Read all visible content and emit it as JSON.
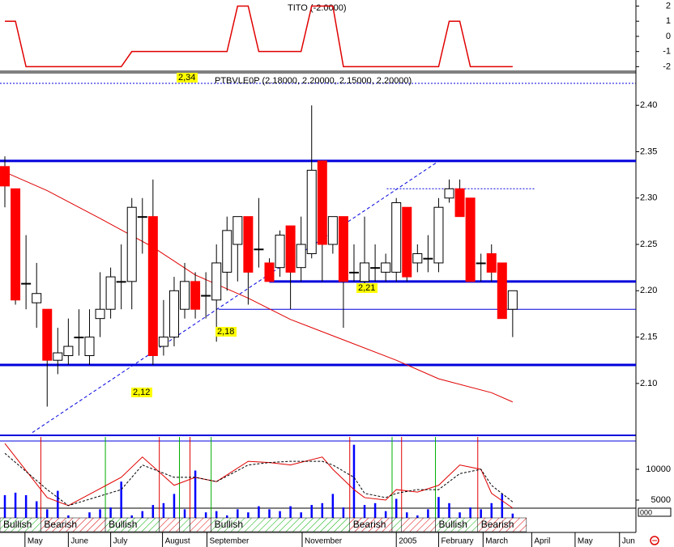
{
  "chart_data": [
    {
      "type": "line",
      "title": "TITO (-2.0000)",
      "color": "#e00000",
      "values": [
        1,
        1,
        -2,
        -2,
        -2,
        -2,
        -2,
        -2,
        -2,
        -2,
        -2,
        -2,
        -1,
        -1,
        -1,
        -1,
        -1,
        -1,
        -1,
        -1,
        -1,
        -1,
        2,
        2,
        -1,
        -1,
        -1,
        -1,
        -1,
        2,
        2,
        2,
        -2,
        -2,
        -2,
        -2,
        -2,
        -2,
        -2,
        -2,
        -2,
        -2,
        1,
        1,
        -2,
        -2,
        -2,
        -2,
        -2
      ],
      "xlim": [
        -0.46,
        59.65
      ],
      "ylim": [
        -2.3,
        2.4
      ],
      "yticks": [
        2,
        1,
        0,
        -1,
        -2
      ]
    },
    {
      "type": "candlestick",
      "title": "PTBVLE0P (2.18000, 2.20000, 2.15000, 2.20000)",
      "open": [
        2.334,
        2.31,
        2.208,
        2.187,
        2.18,
        2.125,
        2.13,
        2.15,
        2.13,
        2.17,
        2.18,
        2.21,
        2.21,
        2.28,
        2.28,
        2.14,
        2.15,
        2.18,
        2.21,
        2.195,
        2.19,
        2.22,
        2.25,
        2.28,
        2.245,
        2.23,
        2.225,
        2.27,
        2.225,
        2.24,
        2.34,
        2.25,
        2.28,
        2.22,
        2.21,
        2.225,
        2.22,
        2.22,
        2.29,
        2.23,
        2.235,
        2.23,
        2.3,
        2.31,
        2.3,
        2.23,
        2.24,
        2.23,
        2.18
      ],
      "high": [
        2.345,
        2.31,
        2.26,
        2.23,
        2.18,
        2.16,
        2.17,
        2.18,
        2.18,
        2.22,
        2.225,
        2.25,
        2.3,
        2.3,
        2.32,
        2.19,
        2.215,
        2.23,
        2.22,
        2.22,
        2.25,
        2.28,
        2.28,
        2.28,
        2.3,
        2.235,
        2.265,
        2.27,
        2.28,
        2.4,
        2.34,
        2.28,
        2.28,
        2.25,
        2.28,
        2.25,
        2.24,
        2.3,
        2.29,
        2.25,
        2.26,
        2.3,
        2.32,
        2.32,
        2.3,
        2.24,
        2.25,
        2.23,
        2.2
      ],
      "low": [
        2.29,
        2.185,
        2.18,
        2.16,
        2.075,
        2.11,
        2.12,
        2.13,
        2.12,
        2.15,
        2.17,
        2.18,
        2.18,
        2.24,
        2.12,
        2.13,
        2.14,
        2.17,
        2.17,
        2.17,
        2.145,
        2.2,
        2.21,
        2.185,
        2.225,
        2.21,
        2.215,
        2.18,
        2.21,
        2.235,
        2.21,
        2.24,
        2.16,
        2.21,
        2.205,
        2.21,
        2.21,
        2.21,
        2.21,
        2.22,
        2.22,
        2.22,
        2.295,
        2.28,
        2.21,
        2.21,
        2.21,
        2.17,
        2.15
      ],
      "close": [
        2.313,
        2.19,
        2.208,
        2.197,
        2.125,
        2.133,
        2.14,
        2.15,
        2.15,
        2.18,
        2.215,
        2.21,
        2.29,
        2.28,
        2.13,
        2.15,
        2.2,
        2.21,
        2.18,
        2.195,
        2.23,
        2.265,
        2.28,
        2.22,
        2.245,
        2.21,
        2.26,
        2.22,
        2.25,
        2.33,
        2.25,
        2.28,
        2.21,
        2.22,
        2.23,
        2.225,
        2.23,
        2.295,
        2.215,
        2.24,
        2.235,
        2.29,
        2.31,
        2.28,
        2.21,
        2.23,
        2.22,
        2.17,
        2.2
      ],
      "up_color": "#ffffff",
      "down_color": "#ff0000",
      "levels": {
        "values": [
          2.34,
          2.21,
          2.18,
          2.12
        ],
        "labels": [
          "2,34",
          "2,21",
          "2,18",
          "2,12"
        ],
        "x_start": [
          -0.46,
          25,
          20.2,
          -0.46
        ],
        "color": "#0000dd"
      },
      "moving_average": {
        "x": [
          0,
          4,
          9,
          14,
          18,
          23,
          27,
          32,
          37,
          41,
          46,
          48
        ],
        "values": [
          2.328,
          2.308,
          2.278,
          2.247,
          2.217,
          2.192,
          2.169,
          2.147,
          2.125,
          2.105,
          2.09,
          2.08
        ],
        "color": "#e00000"
      },
      "trend_line": {
        "x": [
          2.6,
          40.9
        ],
        "values": [
          2.047,
          2.339
        ],
        "color": "#0000dd"
      },
      "resistance_line": {
        "x": [
          36.1,
          50.1
        ],
        "values": [
          2.31,
          2.31
        ],
        "color": "#0000dd"
      },
      "xlim": [
        -0.46,
        59.65
      ],
      "ylim": [
        2.044,
        2.422
      ],
      "yticks": [
        {
          "value": 2.4,
          "label": "2.40"
        },
        2.35,
        {
          "value": 2.3,
          "label": "2.30"
        },
        2.25,
        {
          "value": 2.2,
          "label": "2.20"
        },
        2.15,
        {
          "value": 2.1,
          "label": "2.10"
        }
      ]
    },
    {
      "type": "bar",
      "color": "#0000ff",
      "values": [
        5800,
        6200,
        5800,
        4800,
        3500,
        6500,
        2500,
        2000,
        3000,
        3500,
        3800,
        8000,
        2500,
        3200,
        4200,
        4500,
        6000,
        3500,
        9800,
        3000,
        3200,
        2500,
        3500,
        3000,
        4000,
        3500,
        3200,
        4000,
        3000,
        4200,
        4500,
        6000,
        3800,
        14000,
        4200,
        4500,
        3200,
        5200,
        3000,
        2500,
        3500,
        5500,
        4500,
        3000,
        3800,
        3500,
        4500,
        6000,
        2800
      ],
      "lines": [
        {
          "x": [
            0,
            4,
            6,
            11,
            13,
            16,
            18,
            20,
            23,
            25,
            27,
            30,
            31,
            33,
            34,
            36,
            37,
            39,
            41,
            43,
            45,
            46,
            48
          ],
          "values": [
            14200,
            5400,
            4100,
            8700,
            12000,
            7400,
            8700,
            8000,
            11300,
            11100,
            10700,
            12000,
            10000,
            6700,
            5400,
            5000,
            6700,
            6300,
            7400,
            10700,
            10000,
            6100,
            3700
          ],
          "color": "#e00000",
          "dashed": false
        },
        {
          "x": [
            0,
            4,
            6,
            11,
            13,
            16,
            18,
            20,
            23,
            25,
            27,
            30,
            31,
            33,
            34,
            36,
            37,
            39,
            41,
            43,
            45,
            46,
            48
          ],
          "values": [
            12600,
            6700,
            4100,
            6700,
            10700,
            8700,
            8700,
            8000,
            10700,
            11100,
            11300,
            11300,
            10700,
            8700,
            6100,
            5400,
            6100,
            6700,
            6700,
            9300,
            10000,
            7400,
            4700
          ],
          "color": "#000000",
          "dashed": true
        }
      ],
      "sentiment": {
        "labels": [
          "Bullish",
          "Bearish",
          "Bullish",
          null,
          null,
          null,
          "Bullish",
          "Bearish",
          null,
          null,
          "Bullish",
          "Bearish"
        ],
        "colors": [
          "#00b000",
          "#e00000",
          "#00b000",
          "#e00000",
          "#00b000",
          "#e00000",
          "#00b000",
          "#e00000",
          "#00b000",
          "#e00000",
          "#00b000",
          "#e00000"
        ],
        "bounds": [
          -0.46,
          3.4,
          9.5,
          14.6,
          16.5,
          17.5,
          19.5,
          32.6,
          36.6,
          37.5,
          40.7,
          44.7,
          49.3
        ]
      },
      "xticks": [
        {
          "value": 1.9,
          "label": "May"
        },
        {
          "value": 6.0,
          "label": "June"
        },
        {
          "value": 10.0,
          "label": "July"
        },
        {
          "value": 14.9,
          "label": "August"
        },
        {
          "value": 19.1,
          "label": "September"
        },
        {
          "value": 28.1,
          "label": "November"
        },
        {
          "value": 37.0,
          "label": "2005"
        },
        {
          "value": 41.0,
          "label": "February"
        },
        {
          "value": 45.2,
          "label": "March"
        },
        {
          "value": 49.8,
          "label": "April"
        },
        {
          "value": 53.9,
          "label": "May"
        },
        {
          "value": 58.1,
          "label": "Jun"
        }
      ],
      "scale_box": "000",
      "xlim": [
        -0.46,
        59.65
      ],
      "ylim": [
        0,
        15260
      ],
      "yticks": [
        10000,
        5000
      ]
    }
  ]
}
